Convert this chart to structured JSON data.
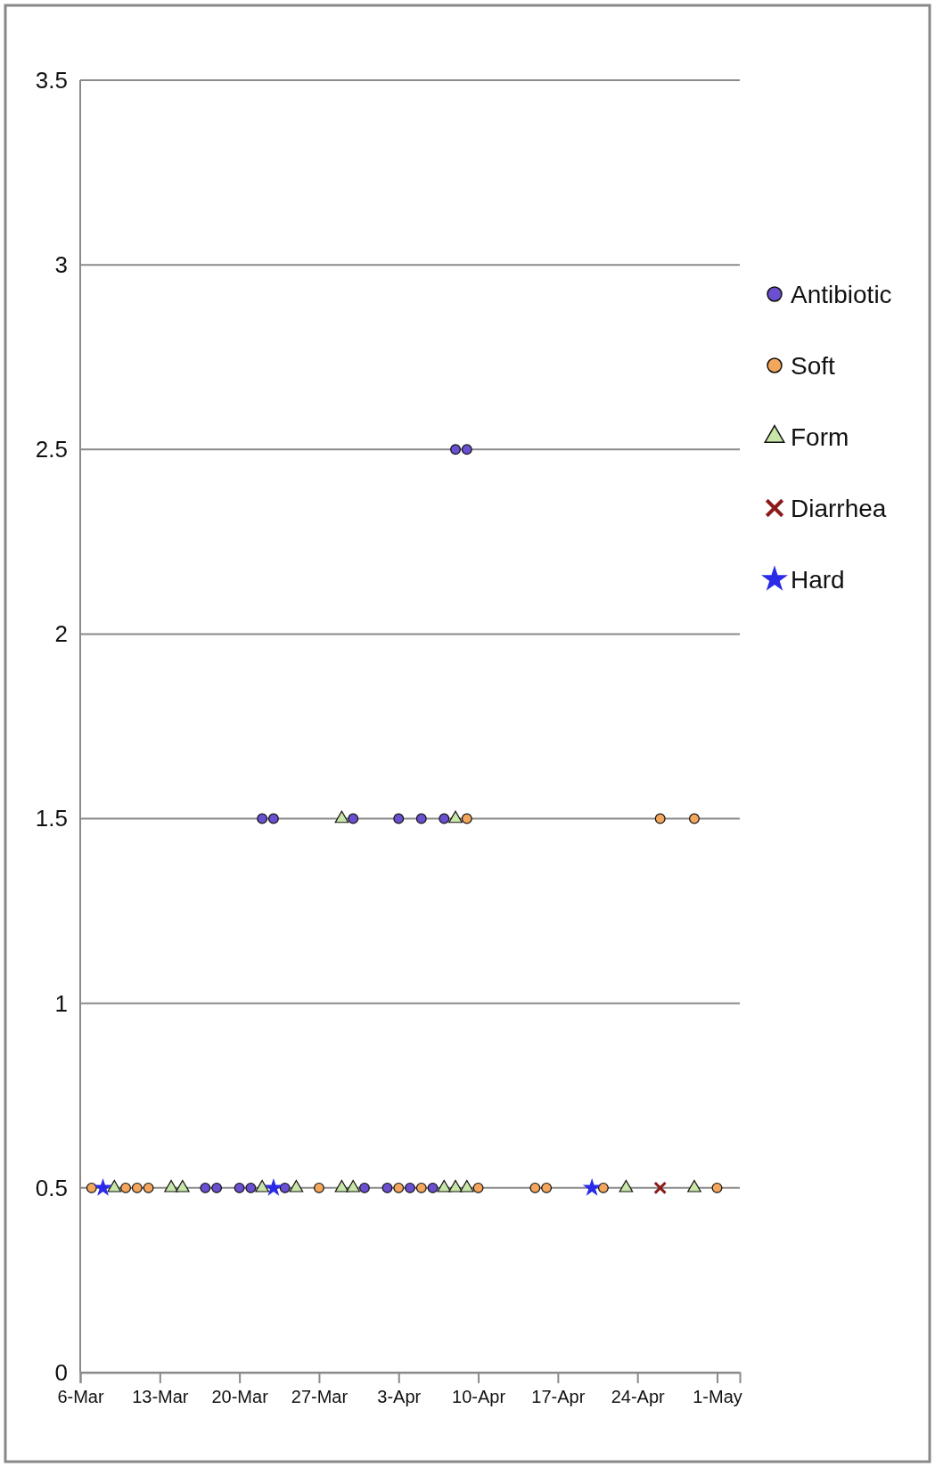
{
  "chart_data": {
    "type": "scatter",
    "xlim": [
      "--03-06",
      "--05-03"
    ],
    "xticks": [
      {
        "value": "--03-06",
        "label": "6-Mar"
      },
      {
        "value": "--03-13",
        "label": "13-Mar"
      },
      {
        "value": "--03-20",
        "label": "20-Mar"
      },
      {
        "value": "--03-27",
        "label": "27-Mar"
      },
      {
        "value": "--04-03",
        "label": "3-Apr"
      },
      {
        "value": "--04-10",
        "label": "10-Apr"
      },
      {
        "value": "--04-17",
        "label": "17-Apr"
      },
      {
        "value": "--04-24",
        "label": "24-Apr"
      },
      {
        "value": "--05-01",
        "label": "1-May"
      }
    ],
    "ylim": [
      0,
      3.5
    ],
    "yticks": [
      0,
      0.5,
      1,
      1.5,
      2,
      2.5,
      3,
      3.5
    ],
    "grid": "y",
    "legend": "right",
    "series": [
      {
        "name": "Antibiotic",
        "color": "#6a4fd0",
        "marker": "circle",
        "x": [
          "--03-17",
          "--03-18",
          "--03-20",
          "--03-21",
          "--03-24",
          "--03-31",
          "--04-02",
          "--04-04",
          "--04-06",
          "--03-22",
          "--03-23",
          "--03-30",
          "--04-03",
          "--04-05",
          "--04-07",
          "--04-08",
          "--04-09"
        ],
        "values": [
          0.5,
          0.5,
          0.5,
          0.5,
          0.5,
          0.5,
          0.5,
          0.5,
          0.5,
          1.5,
          1.5,
          1.5,
          1.5,
          1.5,
          1.5,
          2.5,
          2.5
        ]
      },
      {
        "name": "Soft",
        "color": "#f4a65c",
        "marker": "circle",
        "x": [
          "--03-07",
          "--03-10",
          "--03-11",
          "--03-12",
          "--03-27",
          "--04-03",
          "--04-05",
          "--04-10",
          "--04-15",
          "--04-16",
          "--04-21",
          "--05-01",
          "--04-09",
          "--04-26",
          "--04-29"
        ],
        "values": [
          0.5,
          0.5,
          0.5,
          0.5,
          0.5,
          0.5,
          0.5,
          0.5,
          0.5,
          0.5,
          0.5,
          0.5,
          1.5,
          1.5,
          1.5
        ]
      },
      {
        "name": "Form",
        "color": "#c8e6a8",
        "marker": "triangle",
        "x": [
          "--03-09",
          "--03-14",
          "--03-15",
          "--03-22",
          "--03-25",
          "--03-29",
          "--03-30",
          "--04-07",
          "--04-08",
          "--04-09",
          "--04-23",
          "--04-29",
          "--03-29",
          "--04-08"
        ],
        "values": [
          0.5,
          0.5,
          0.5,
          0.5,
          0.5,
          0.5,
          0.5,
          0.5,
          0.5,
          0.5,
          0.5,
          0.5,
          1.5,
          1.5
        ]
      },
      {
        "name": "Diarrhea",
        "color": "#8b1a1a",
        "marker": "cross",
        "x": [
          "--04-26"
        ],
        "values": [
          0.5
        ]
      },
      {
        "name": "Hard",
        "color": "#2a2ae8",
        "marker": "star",
        "x": [
          "--03-08",
          "--03-23",
          "--04-20"
        ],
        "values": [
          0.5,
          0.5,
          0.5
        ]
      }
    ]
  }
}
